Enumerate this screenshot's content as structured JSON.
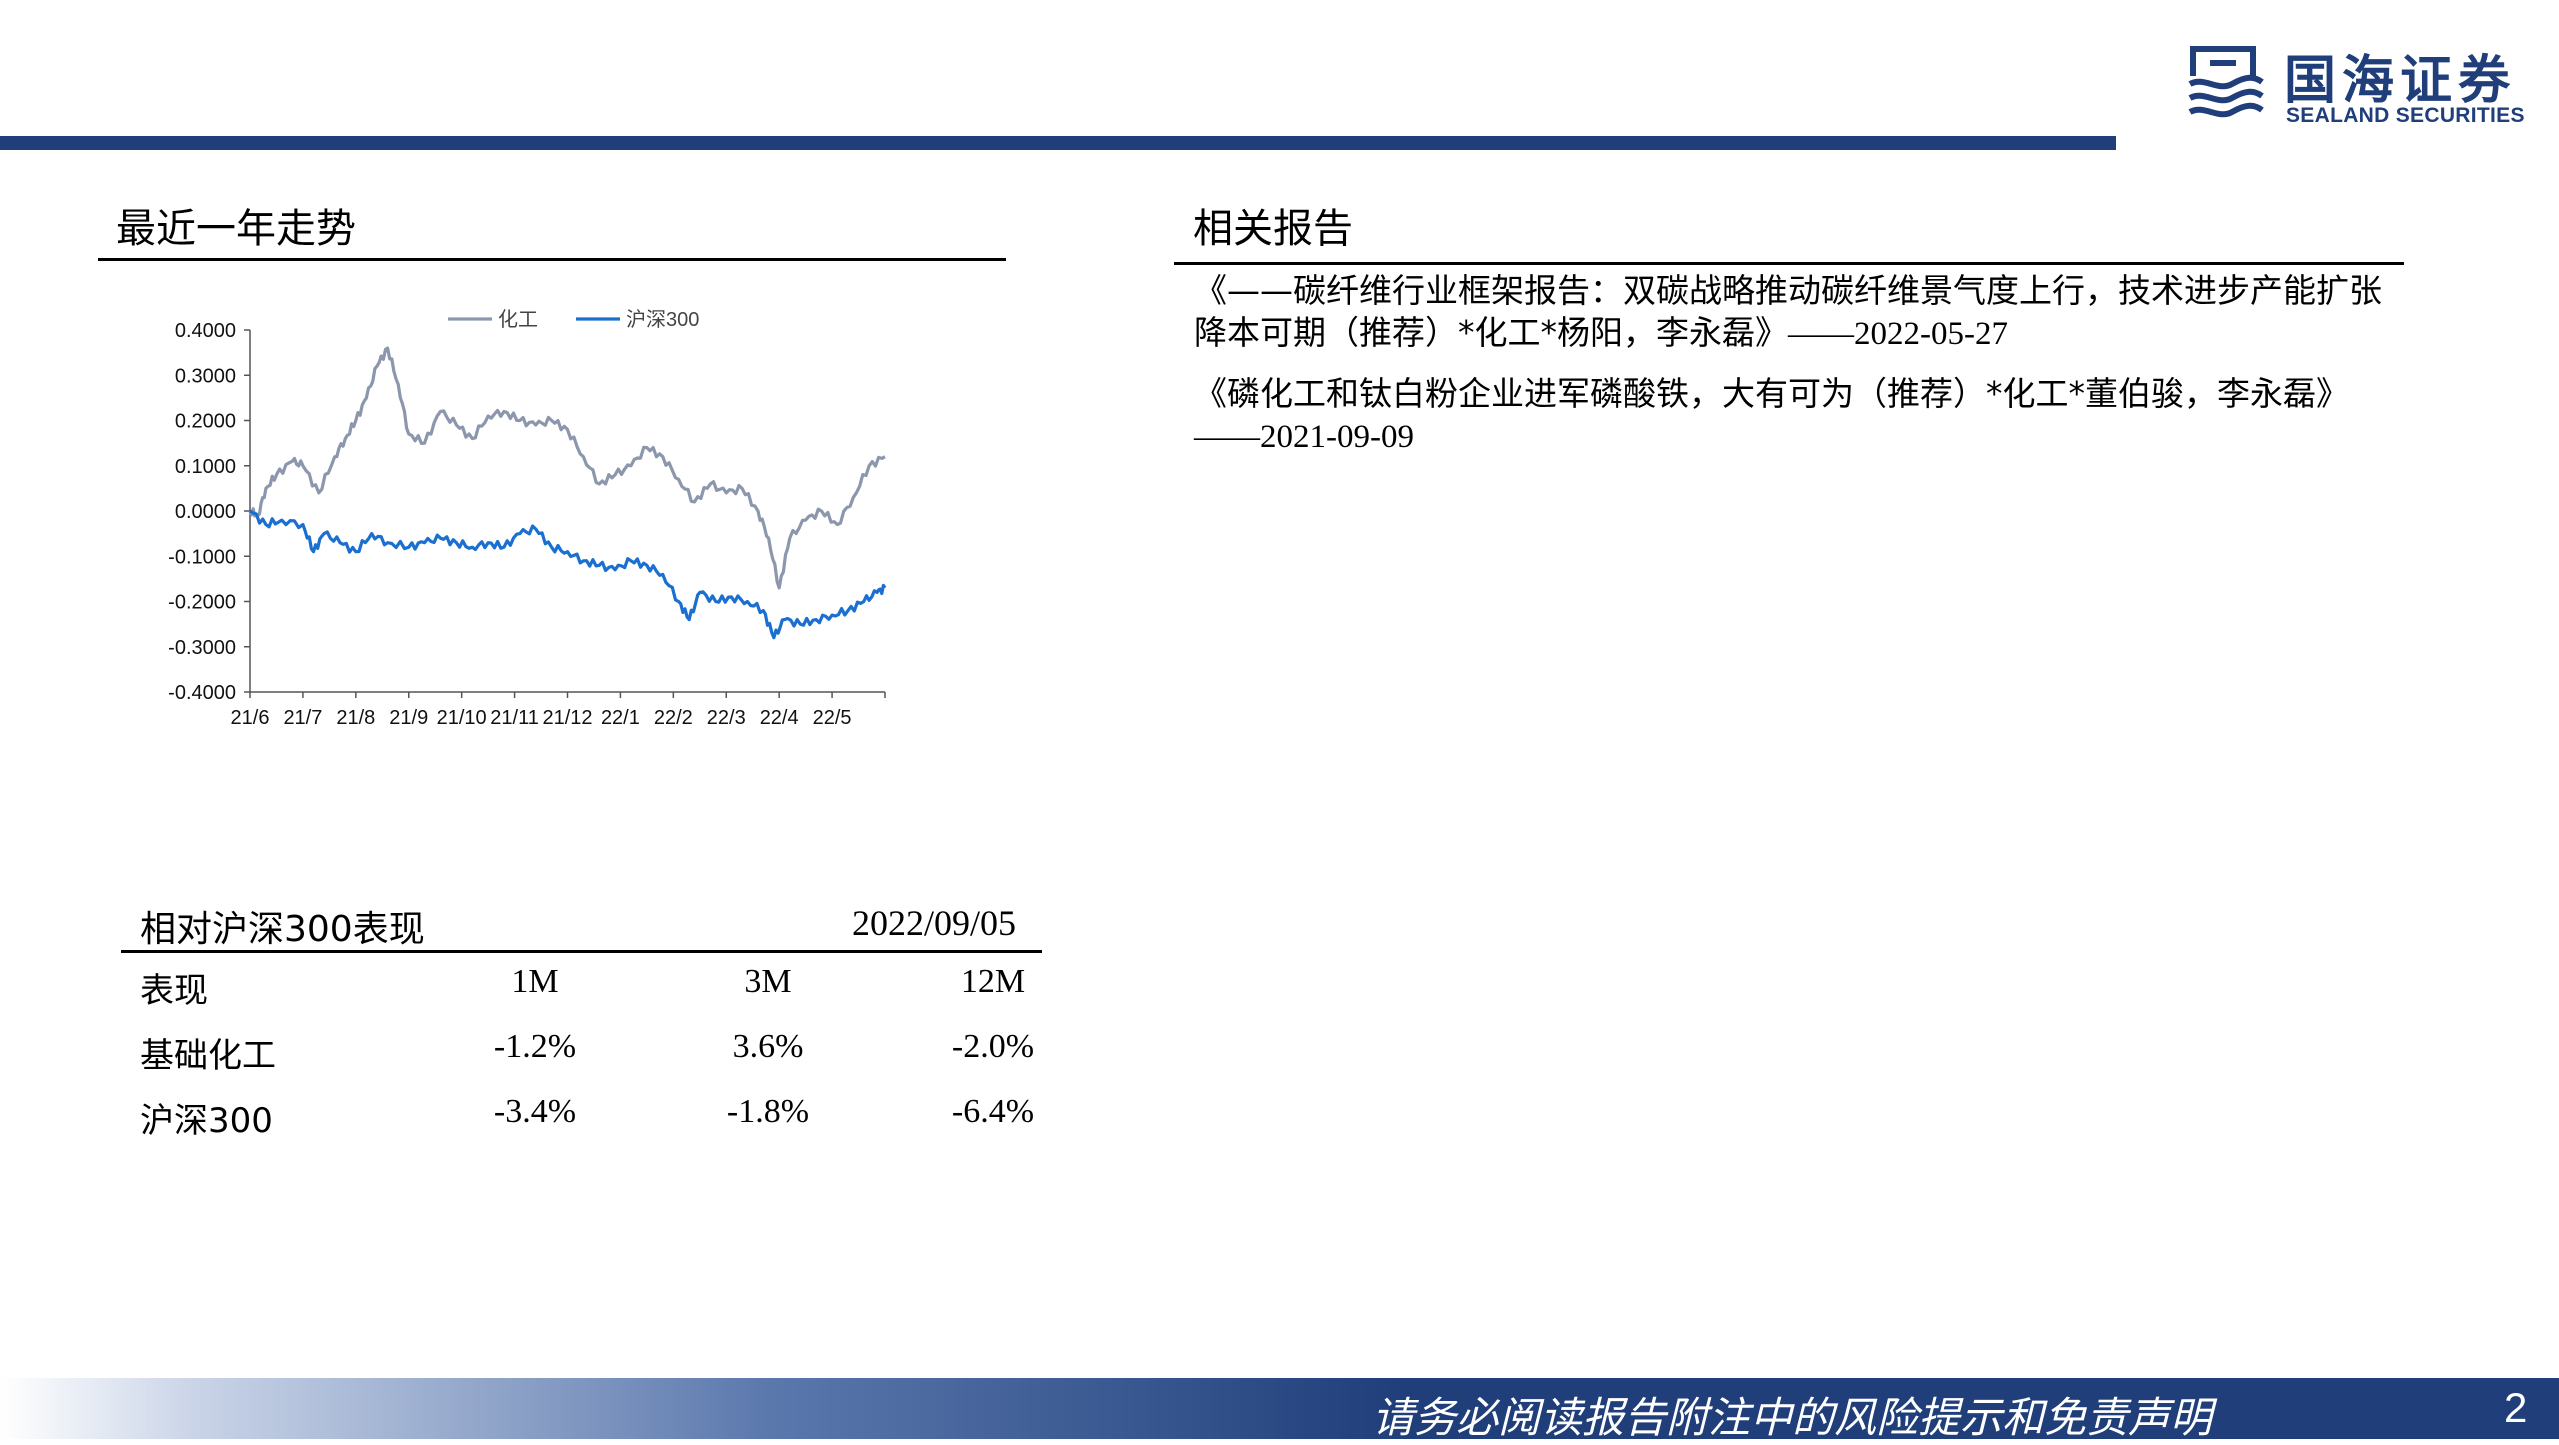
{
  "header": {
    "logo_cn": "国海证券",
    "logo_en": "SEALAND SECURITIES",
    "brand_color": "#1f3e7a"
  },
  "left": {
    "chart_title": "最近一年走势"
  },
  "right": {
    "title": "相关报告",
    "reports": [
      {
        "text": "《——碳纤维行业框架报告：双碳战略推动碳纤维景气度上行，技术进步产能扩张降本可期（推荐）*化工*杨阳，李永磊》",
        "date": "——2022-05-27"
      },
      {
        "text": "《磷化工和钛白粉企业进军磷酸铁，大有可为（推荐）*化工*董伯骏，李永磊》",
        "date": "——2021-09-09"
      }
    ]
  },
  "chart_data": {
    "type": "line",
    "title": "",
    "legend_position": "top",
    "x_tick_labels": [
      "21/6",
      "21/7",
      "21/8",
      "21/9",
      "21/10",
      "21/11",
      "21/12",
      "22/1",
      "22/2",
      "22/3",
      "22/4",
      "22/5"
    ],
    "ylim": [
      -0.4,
      0.4
    ],
    "y_tick_labels": [
      "0.4000",
      "0.3000",
      "0.2000",
      "0.1000",
      "0.0000",
      "-0.1000",
      "-0.2000",
      "-0.3000",
      "-0.4000"
    ],
    "series": [
      {
        "name": "化工",
        "color": "#8c97ad",
        "x": [
          0,
          0.15,
          0.3,
          0.5,
          0.8,
          1.0,
          1.3,
          1.6,
          1.8,
          2.0,
          2.2,
          2.4,
          2.6,
          2.8,
          3.0,
          3.3,
          3.6,
          3.9,
          4.2,
          4.5,
          4.8,
          5.1,
          5.4,
          5.7,
          6.0,
          6.3,
          6.6,
          6.9,
          7.2,
          7.5,
          7.8,
          8.1,
          8.4,
          8.7,
          9.0,
          9.3,
          9.6,
          9.8,
          10.0,
          10.2,
          10.5,
          10.8,
          11.1,
          11.4,
          11.7,
          12.0
        ],
        "y": [
          0.0,
          -0.01,
          0.05,
          0.08,
          0.11,
          0.1,
          0.04,
          0.12,
          0.16,
          0.2,
          0.25,
          0.32,
          0.36,
          0.28,
          0.17,
          0.15,
          0.22,
          0.19,
          0.16,
          0.21,
          0.22,
          0.2,
          0.19,
          0.2,
          0.18,
          0.12,
          0.06,
          0.08,
          0.1,
          0.14,
          0.12,
          0.07,
          0.02,
          0.06,
          0.04,
          0.05,
          0.0,
          -0.06,
          -0.17,
          -0.06,
          -0.02,
          0.0,
          -0.03,
          0.03,
          0.1,
          0.12
        ]
      },
      {
        "name": "沪深300",
        "color": "#1a6fd0",
        "x": [
          0,
          0.3,
          0.6,
          1.0,
          1.2,
          1.4,
          1.7,
          2.0,
          2.3,
          2.6,
          3.0,
          3.3,
          3.6,
          3.9,
          4.2,
          4.5,
          4.8,
          5.1,
          5.4,
          5.7,
          6.0,
          6.3,
          6.6,
          6.9,
          7.2,
          7.5,
          7.8,
          8.1,
          8.3,
          8.5,
          8.8,
          9.1,
          9.4,
          9.7,
          9.9,
          10.1,
          10.4,
          10.7,
          11.0,
          11.3,
          11.6,
          11.85,
          12.0
        ],
        "y": [
          0.0,
          -0.03,
          -0.02,
          -0.03,
          -0.09,
          -0.05,
          -0.07,
          -0.09,
          -0.05,
          -0.07,
          -0.08,
          -0.07,
          -0.06,
          -0.07,
          -0.08,
          -0.07,
          -0.08,
          -0.05,
          -0.04,
          -0.08,
          -0.09,
          -0.11,
          -0.12,
          -0.13,
          -0.11,
          -0.12,
          -0.14,
          -0.2,
          -0.24,
          -0.18,
          -0.2,
          -0.19,
          -0.2,
          -0.22,
          -0.28,
          -0.24,
          -0.25,
          -0.24,
          -0.23,
          -0.22,
          -0.2,
          -0.18,
          -0.17
        ]
      }
    ]
  },
  "performance": {
    "title": "相对沪深300表现",
    "date": "2022/09/05",
    "header": {
      "label": "表现",
      "c1": "1M",
      "c2": "3M",
      "c3": "12M"
    },
    "rows": [
      {
        "label": "基础化工",
        "c1": "-1.2%",
        "c2": "3.6%",
        "c3": "-2.0%"
      },
      {
        "label": "沪深300",
        "c1": "-3.4%",
        "c2": "-1.8%",
        "c3": "-6.4%"
      }
    ]
  },
  "footer": {
    "disclaimer": "请务必阅读报告附注中的风险提示和免责声明",
    "page": "2"
  }
}
